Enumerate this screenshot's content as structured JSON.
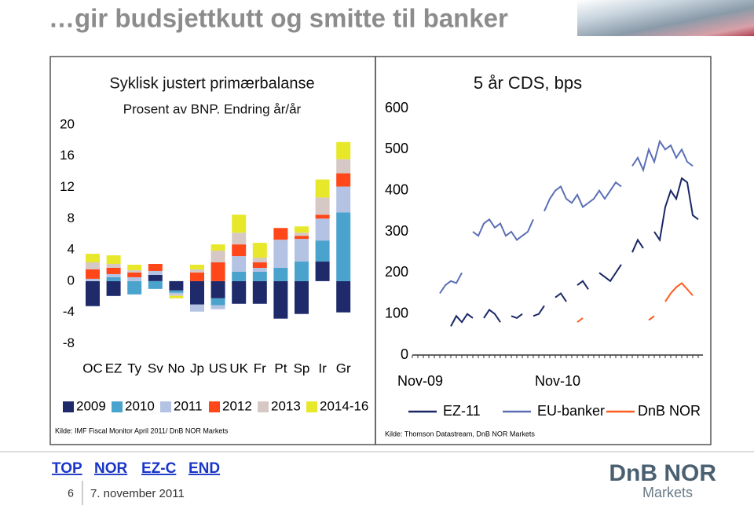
{
  "header": {
    "title": "…gir budsjettkutt og smitte til banker"
  },
  "chart_data": [
    {
      "type": "bar",
      "stacked": true,
      "title": "Syklisk justert primærbalanse",
      "subtitle": "Prosent av BNP. Endring år/år",
      "source": "Kilde: IMF Fiscal Monitor April 2011/ DnB NOR Markets",
      "categories": [
        "OC",
        "EZ",
        "Ty",
        "Sv",
        "No",
        "Jp",
        "US",
        "UK",
        "Fr",
        "Pt",
        "Sp",
        "Ir",
        "Gr"
      ],
      "series": [
        {
          "name": "2009",
          "color": "#1f2a6b",
          "values": [
            -3.2,
            -1.9,
            0,
            0.8,
            -1.2,
            -3.0,
            -2.2,
            -2.9,
            -2.9,
            -4.8,
            -4.2,
            2.5,
            -4.0
          ]
        },
        {
          "name": "2010",
          "color": "#4aa3cc",
          "values": [
            0,
            0.5,
            -1.7,
            -1.0,
            -0.3,
            0,
            -0.9,
            1.2,
            1.2,
            1.7,
            2.5,
            2.7,
            8.8
          ]
        },
        {
          "name": "2011",
          "color": "#b4c3e3",
          "values": [
            0.3,
            0.4,
            0.5,
            0.5,
            -0.2,
            -0.9,
            -0.5,
            2.0,
            0.5,
            3.6,
            2.9,
            2.8,
            3.3
          ]
        },
        {
          "name": "2012",
          "color": "#ff4719",
          "values": [
            1.2,
            0.8,
            0.6,
            0.9,
            0,
            1.1,
            2.4,
            1.5,
            0.7,
            1.5,
            0.4,
            0.5,
            1.7
          ]
        },
        {
          "name": "2013",
          "color": "#d6c8c4",
          "values": [
            0.9,
            0.5,
            0.3,
            0,
            -0.2,
            0.4,
            1.5,
            1.5,
            0.6,
            0,
            0.4,
            2.2,
            1.8
          ]
        },
        {
          "name": "2014-16",
          "color": "#e8e82a",
          "values": [
            1.1,
            1.1,
            0.7,
            0,
            -0.3,
            0.6,
            0.8,
            2.3,
            1.9,
            0,
            0.8,
            2.3,
            2.2
          ]
        }
      ],
      "ylim": [
        -10,
        22
      ],
      "yticks": [
        20,
        16,
        12,
        8,
        4,
        0,
        -4,
        -8
      ]
    },
    {
      "type": "line",
      "title": "5 år CDS, bps",
      "source": "Kilde: Thomson Datastream, DnB NOR Markets",
      "x": [
        null,
        "Nov-09",
        null,
        null,
        null,
        null,
        null,
        null,
        null,
        null,
        null,
        null,
        null,
        null,
        null,
        null,
        null,
        null,
        null,
        null,
        null,
        null,
        null,
        null,
        null,
        null,
        "Nov-10",
        null,
        null,
        null,
        null,
        null,
        null,
        null,
        null,
        null,
        null,
        null,
        null,
        null,
        null,
        null,
        null,
        null,
        null,
        null,
        null,
        null,
        null,
        null,
        null,
        null,
        null
      ],
      "series": [
        {
          "name": "EZ-11",
          "color": "#1a2766",
          "values": [
            null,
            null,
            null,
            null,
            null,
            null,
            null,
            70,
            95,
            80,
            100,
            90,
            null,
            90,
            110,
            100,
            80,
            null,
            95,
            90,
            100,
            null,
            95,
            100,
            120,
            null,
            140,
            150,
            130,
            null,
            170,
            180,
            160,
            null,
            200,
            190,
            180,
            200,
            220,
            null,
            250,
            280,
            260,
            null,
            300,
            280,
            360,
            400,
            380,
            430,
            420,
            340,
            330
          ]
        },
        {
          "name": "EU-banker",
          "color": "#5b6fb5",
          "values": [
            null,
            null,
            null,
            null,
            null,
            150,
            170,
            180,
            175,
            200,
            null,
            300,
            290,
            320,
            330,
            310,
            320,
            290,
            300,
            280,
            290,
            300,
            330,
            null,
            350,
            380,
            400,
            410,
            380,
            370,
            390,
            360,
            370,
            380,
            400,
            380,
            400,
            420,
            410,
            null,
            460,
            480,
            450,
            500,
            470,
            520,
            500,
            510,
            480,
            500,
            470,
            460,
            null
          ]
        },
        {
          "name": "DnB NOR",
          "color": "#ff5a1f",
          "values": [
            null,
            null,
            null,
            null,
            null,
            null,
            null,
            null,
            null,
            null,
            null,
            null,
            null,
            null,
            null,
            null,
            null,
            null,
            null,
            null,
            null,
            null,
            null,
            null,
            null,
            null,
            null,
            null,
            null,
            null,
            80,
            90,
            null,
            null,
            null,
            null,
            null,
            null,
            null,
            null,
            null,
            null,
            null,
            85,
            95,
            null,
            130,
            150,
            165,
            175,
            160,
            145,
            null
          ]
        }
      ],
      "ylim": [
        0,
        600
      ],
      "yticks": [
        600,
        500,
        400,
        300,
        200,
        100,
        0
      ]
    }
  ],
  "footer": {
    "nav": [
      "TOP",
      "NOR",
      "EZ-C",
      "END"
    ],
    "page": 6,
    "date": "7. november 2011",
    "logo": "DnB NOR",
    "logo_sub": "Markets"
  }
}
